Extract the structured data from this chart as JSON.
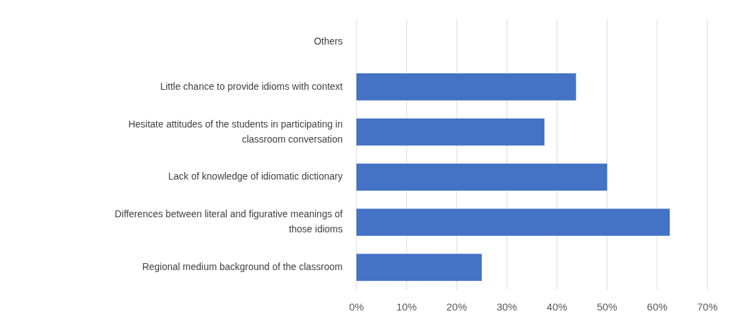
{
  "chart_data": {
    "type": "bar",
    "orientation": "horizontal",
    "categories": [
      "Others",
      "Little chance to provide idioms with context",
      "Hesitate attitudes of the students in participating in classroom conversation",
      "Lack of knowledge of idiomatic dictionary",
      "Differences between literal and figurative meanings of those idioms",
      "Regional medium background of the classroom"
    ],
    "values": [
      0,
      43.8,
      37.5,
      50,
      62.5,
      25
    ],
    "color": "#4472c4",
    "xlim": [
      0,
      70
    ],
    "xticks": [
      {
        "value": 0,
        "label": "0%"
      },
      {
        "value": 10,
        "label": "10%"
      },
      {
        "value": 20,
        "label": "20%"
      },
      {
        "value": 30,
        "label": "30%"
      },
      {
        "value": 40,
        "label": "40%"
      },
      {
        "value": 50,
        "label": "50%"
      },
      {
        "value": 60,
        "label": "60%"
      },
      {
        "value": 70,
        "label": "70%"
      }
    ],
    "grid": "x"
  }
}
